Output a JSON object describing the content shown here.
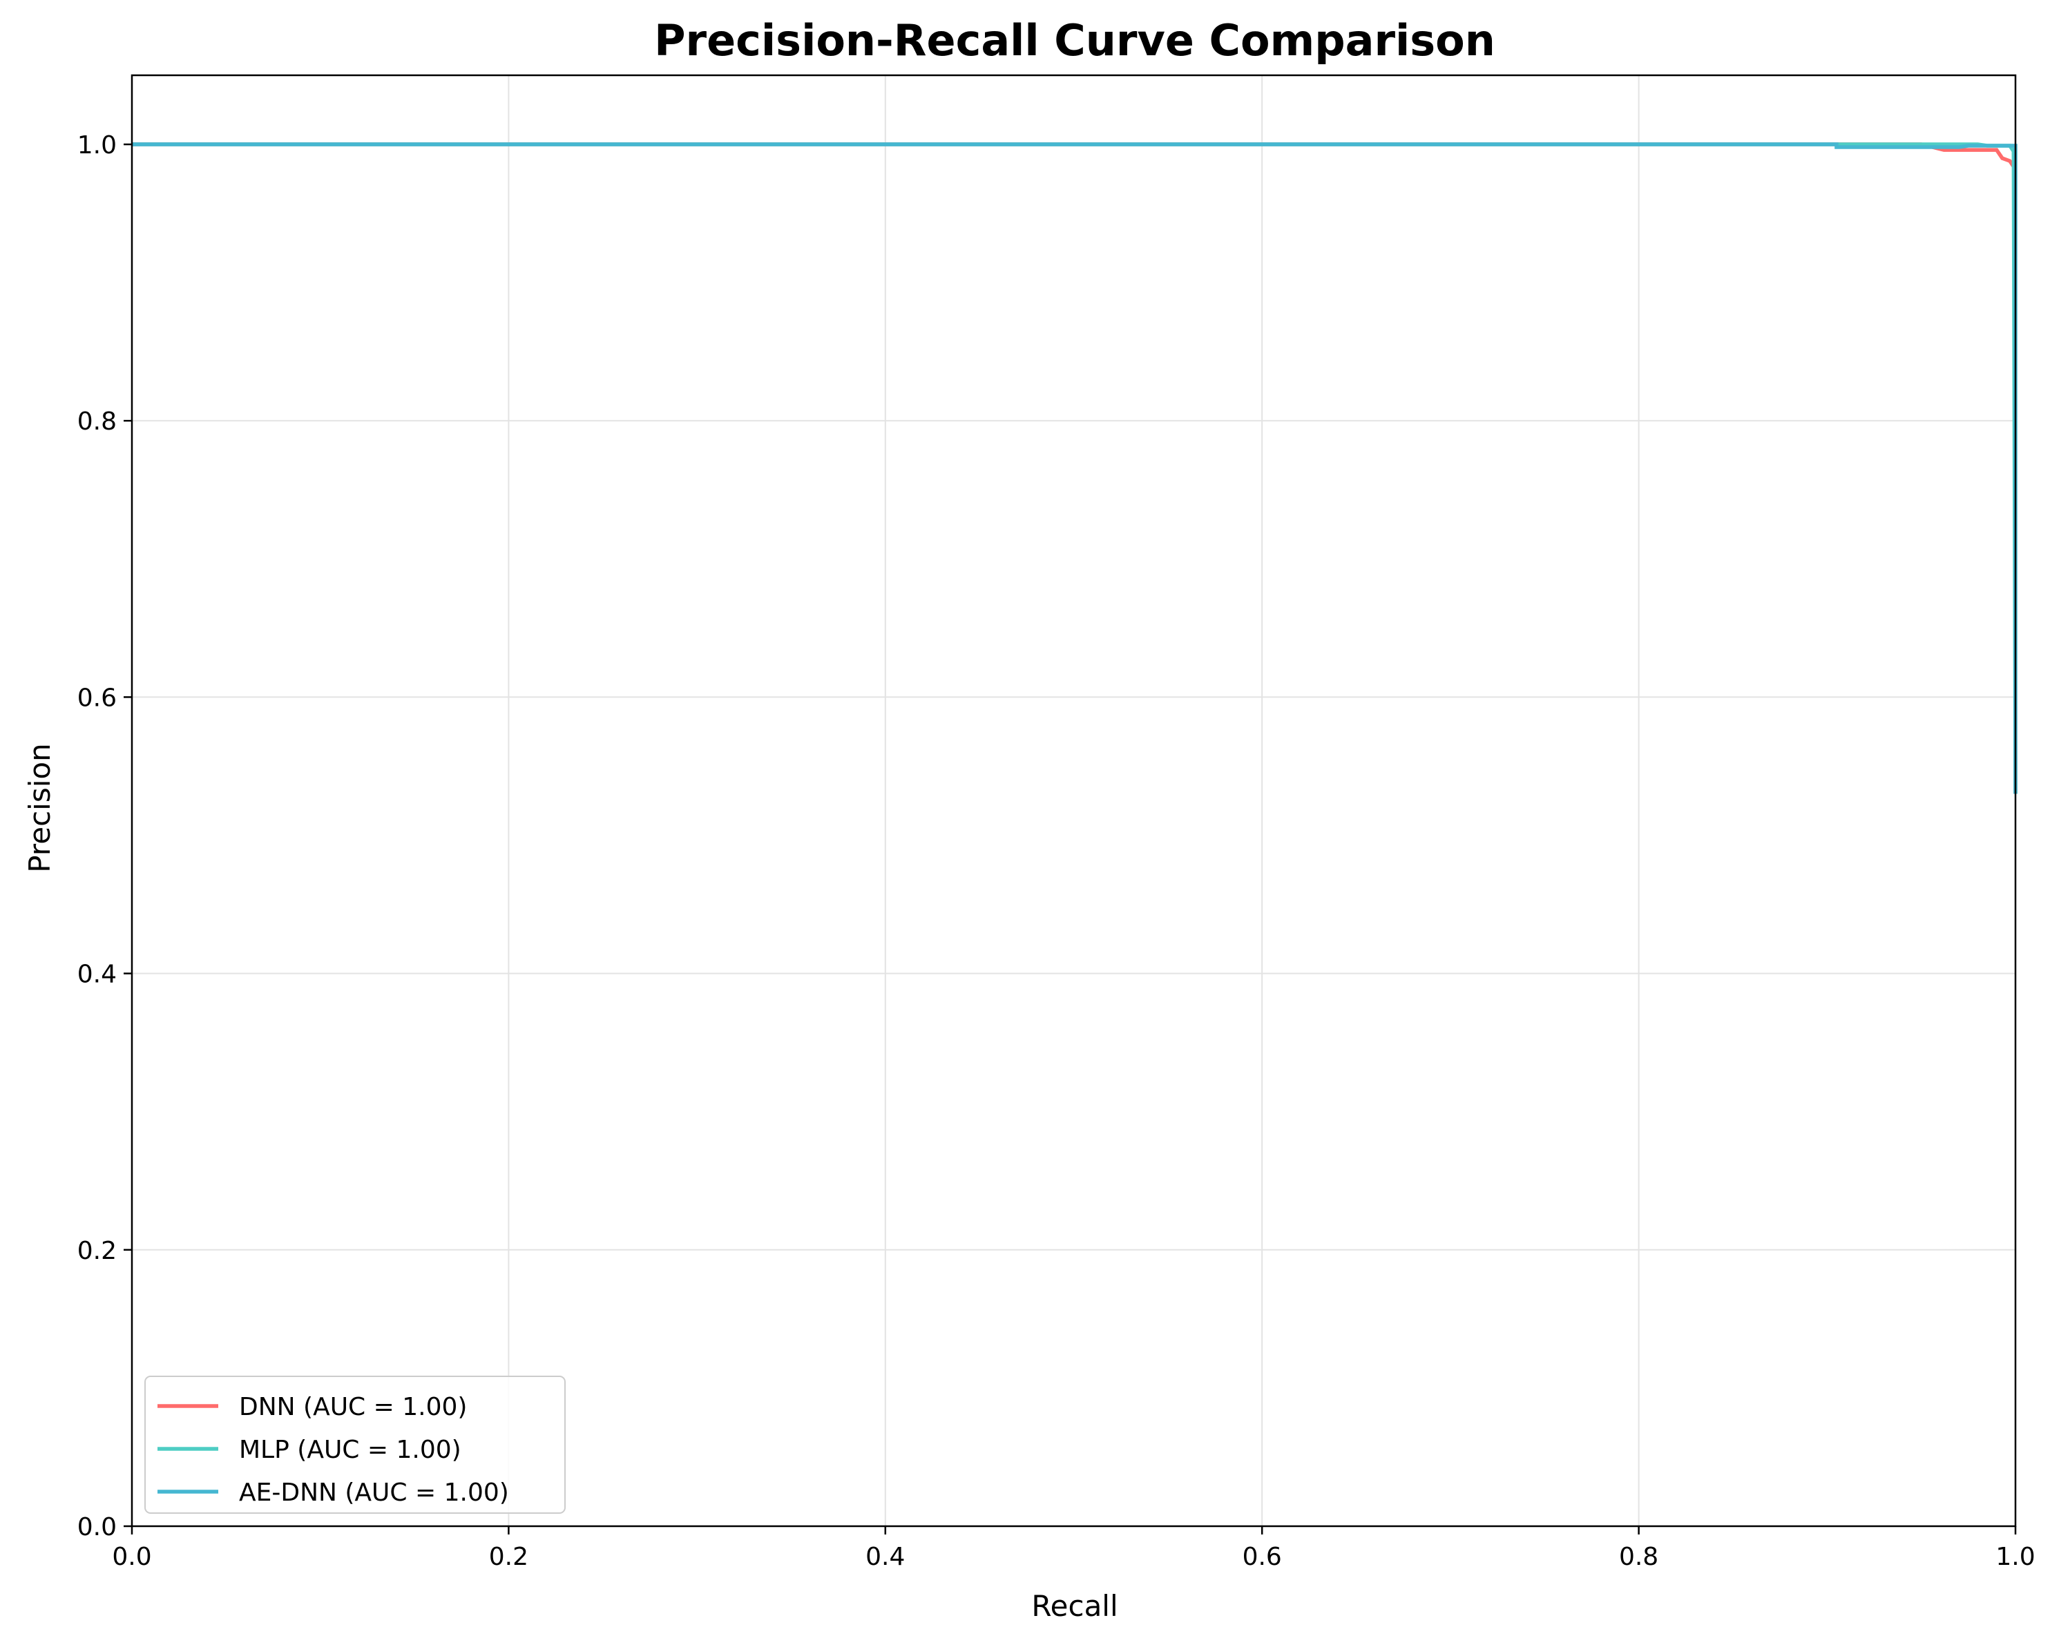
{
  "chart_data": {
    "type": "line",
    "title": "Precision-Recall Curve Comparison",
    "xlabel": "Recall",
    "ylabel": "Precision",
    "xlim": [
      0.0,
      1.0
    ],
    "ylim": [
      0.0,
      1.05
    ],
    "xticks": [
      0.0,
      0.2,
      0.4,
      0.6,
      0.8,
      1.0
    ],
    "xtick_labels": [
      "0.0",
      "0.2",
      "0.4",
      "0.6",
      "0.8",
      "1.0"
    ],
    "yticks": [
      0.0,
      0.2,
      0.4,
      0.6,
      0.8,
      1.0
    ],
    "ytick_labels": [
      "0.0",
      "0.2",
      "0.4",
      "0.6",
      "0.8",
      "1.0"
    ],
    "grid": true,
    "legend_position": "lower-left",
    "series": [
      {
        "name": "DNN (AUC = 1.00)",
        "color": "#ff6b6b",
        "points": [
          [
            0.0,
            1.0
          ],
          [
            0.95,
            1.0
          ],
          [
            0.962,
            0.996
          ],
          [
            0.99,
            0.996
          ],
          [
            0.993,
            0.99
          ],
          [
            0.997,
            0.988
          ],
          [
            0.9985,
            0.985
          ],
          [
            0.9995,
            0.985
          ],
          [
            1.0,
            0.53
          ]
        ]
      },
      {
        "name": "MLP (AUC = 1.00)",
        "color": "#4ecdc4",
        "points": [
          [
            0.0,
            1.0
          ],
          [
            0.98,
            1.0
          ],
          [
            0.985,
            0.999
          ],
          [
            0.997,
            0.999
          ],
          [
            0.999,
            0.995
          ],
          [
            1.0,
            0.53
          ]
        ]
      },
      {
        "name": "AE-DNN (AUC = 1.00)",
        "color": "#45b7d1",
        "points": [
          [
            0.0,
            1.0
          ],
          [
            0.905,
            1.0
          ],
          [
            0.905,
            0.998
          ],
          [
            0.97,
            0.998
          ],
          [
            0.975,
            0.999
          ],
          [
            1.0,
            0.999
          ],
          [
            1.0,
            0.53
          ]
        ]
      }
    ]
  }
}
